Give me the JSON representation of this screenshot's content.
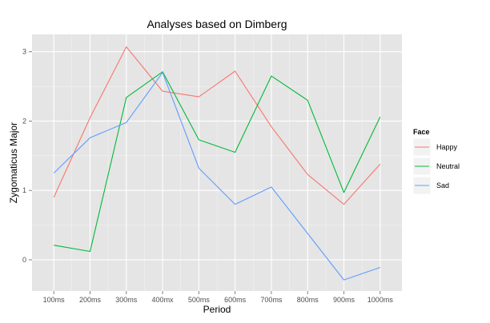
{
  "chart_data": {
    "type": "line",
    "title": "Analyses based on Dimberg",
    "xlabel": "Period",
    "ylabel": "Zygomaticus Major",
    "categories": [
      "100ms",
      "200ms",
      "300ms",
      "400mx",
      "500ms",
      "600ms",
      "700ms",
      "800ms",
      "900ms",
      "1000ms"
    ],
    "yticks": [
      0,
      1,
      2,
      3
    ],
    "ylim": [
      -0.45,
      3.25
    ],
    "grid": true,
    "legend": {
      "title": "Face",
      "placement": "right"
    },
    "series": [
      {
        "name": "Happy",
        "color": "#F8766D",
        "values": [
          0.9,
          2.05,
          3.07,
          2.43,
          2.35,
          2.72,
          1.92,
          1.23,
          0.8,
          1.38
        ]
      },
      {
        "name": "Neutral",
        "color": "#00BA38",
        "values": [
          0.21,
          0.12,
          2.34,
          2.71,
          1.73,
          1.55,
          2.65,
          2.3,
          0.97,
          2.06
        ]
      },
      {
        "name": "Sad",
        "color": "#619CFF",
        "values": [
          1.25,
          1.76,
          1.98,
          2.7,
          1.32,
          0.8,
          1.05,
          0.38,
          -0.29,
          -0.11
        ]
      }
    ]
  }
}
